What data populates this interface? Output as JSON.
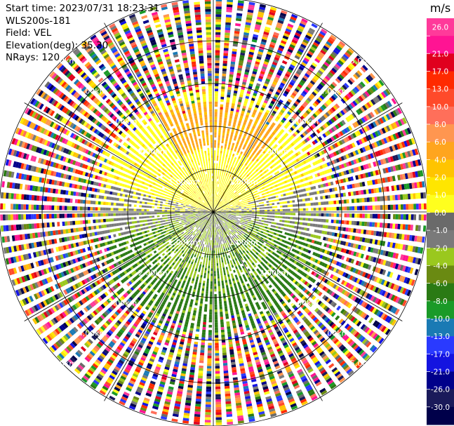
{
  "header": {
    "start_time": "Start time: 2023/07/31 18:23:31",
    "instrument": "WLS200s-181",
    "field": "Field: VEL",
    "elevation": "Elevation(deg): 35.30",
    "nrays": "NRays: 120"
  },
  "colorbar": {
    "unit": "m/s",
    "ticks": [
      "26.0",
      "21.0",
      "17.0",
      "13.0",
      "10.0",
      "8.0",
      "6.0",
      "4.0",
      "2.0",
      "1.0",
      "0.0",
      "-1.0",
      "-2.0",
      "-4.0",
      "-6.0",
      "-8.0",
      "-10.0",
      "-13.0",
      "-17.0",
      "-21.0",
      "-26.0",
      "-30.0"
    ],
    "colors": [
      "#ff3a9a",
      "#ff1493",
      "#e0001e",
      "#ff2a00",
      "#ff4a2a",
      "#ff6f5a",
      "#ff9650",
      "#ffa51e",
      "#ffc400",
      "#ffe600",
      "#ffff1e",
      "#6a6a6a",
      "#7a7a7a",
      "#9ac81e",
      "#6a8a12",
      "#2a7a14",
      "#1a9a28",
      "#1a7ab4",
      "#2a3aff",
      "#1414e0",
      "#00008a",
      "#1a1a5a",
      "#00004a"
    ]
  },
  "chart_data": {
    "type": "heatmap",
    "projection": "polar-ppi",
    "field": "VEL",
    "units": "m/s",
    "nrays": 120,
    "range_rings_km": [
      1.0,
      2.0,
      3.0,
      4.0,
      5.0
    ],
    "range_ring_labels": [
      "1.00km",
      "2.00km",
      "3.00km",
      "4.00km",
      "5.00km"
    ],
    "spoke_angles_deg": [
      0,
      30,
      60,
      90,
      120,
      150,
      180,
      210,
      240,
      270,
      300,
      330
    ],
    "max_range_km": 5.0,
    "clean_range_km": 3.0,
    "dominant_velocity": [
      {
        "sector": "north",
        "value_m_s": 2.0
      },
      {
        "sector": "north-core",
        "value_m_s": 4.0
      },
      {
        "sector": "east-west",
        "value_m_s": 0.0
      },
      {
        "sector": "south",
        "value_m_s": -4.0
      },
      {
        "sector": "south-near",
        "value_m_s": -2.0
      }
    ]
  }
}
